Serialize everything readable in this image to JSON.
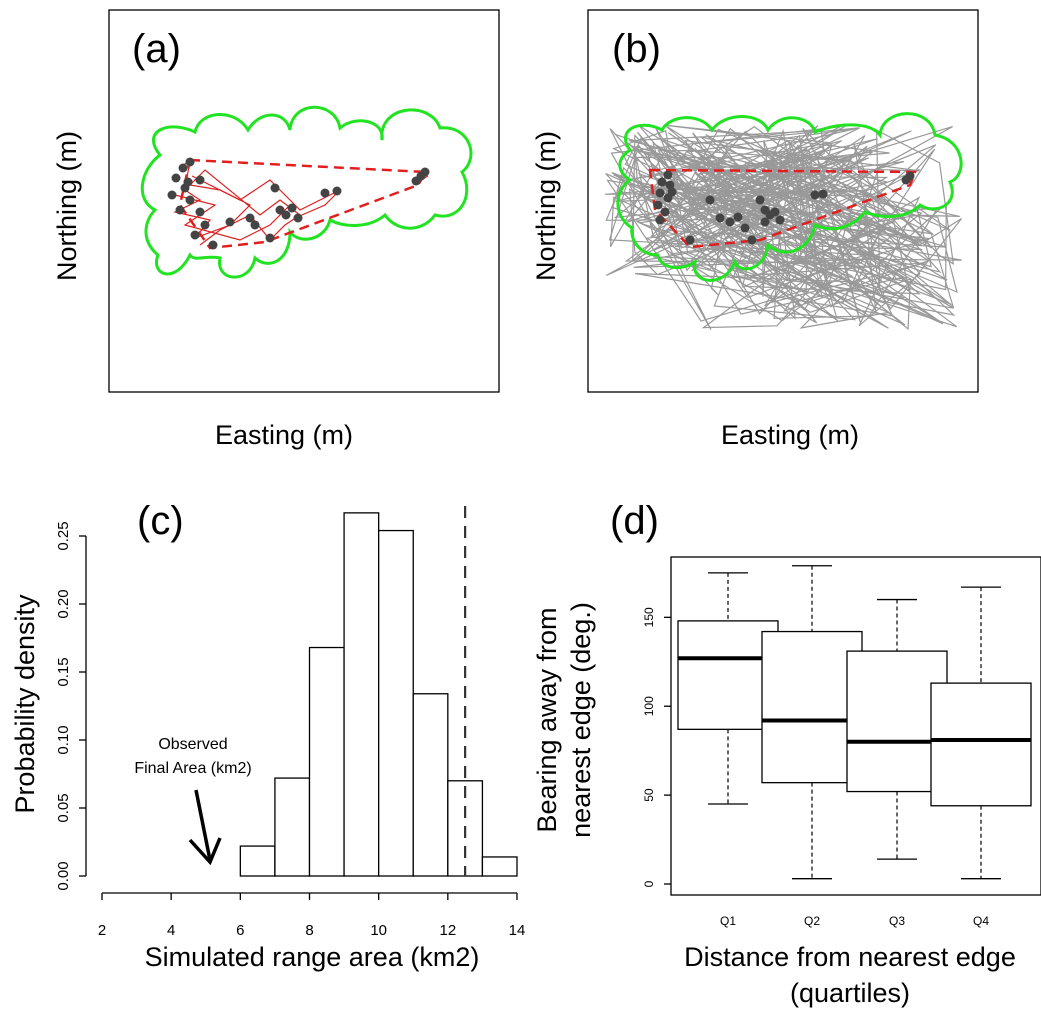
{
  "panels": {
    "a": {
      "tag": "(a)",
      "xlabel": "Easting (m)",
      "ylabel": "Northing (m)"
    },
    "b": {
      "tag": "(b)",
      "xlabel": "Easting (m)",
      "ylabel": "Northing (m)"
    },
    "c": {
      "tag": "(c)",
      "annotation_line1": "Observed",
      "annotation_line2": "Final Area (km2)"
    },
    "d": {
      "tag": "(d)"
    }
  },
  "colors": {
    "buffer": "#22e322",
    "hull": "#e02020",
    "paths": "#999999",
    "points": "#444444",
    "steps": "#e02020"
  },
  "chart_data": [
    {
      "panel": "a",
      "type": "scatter",
      "description_elements": [
        "observed relocation points",
        "red movement paths",
        "red dashed minimum convex polygon",
        "green buffer outline"
      ],
      "ticks_shown": false
    },
    {
      "panel": "b",
      "type": "line",
      "description_elements": [
        "grey simulated range polygons",
        "observed points",
        "red dashed polygon",
        "green buffer outline"
      ],
      "ticks_shown": false
    },
    {
      "panel": "c",
      "type": "bar",
      "xlabel": "Simulated range area (km2)",
      "ylabel": "Probability density",
      "xlim": [
        2,
        14
      ],
      "ylim": [
        0,
        0.25
      ],
      "xticks": [
        "2",
        "4",
        "6",
        "8",
        "10",
        "12",
        "14"
      ],
      "yticks": [
        "0.00",
        "0.05",
        "0.10",
        "0.15",
        "0.20",
        "0.25"
      ],
      "bins": [
        {
          "x0": 6,
          "x1": 7,
          "value": 0.022
        },
        {
          "x0": 7,
          "x1": 8,
          "value": 0.072
        },
        {
          "x0": 8,
          "x1": 9,
          "value": 0.168
        },
        {
          "x0": 9,
          "x1": 10,
          "value": 0.267
        },
        {
          "x0": 10,
          "x1": 11,
          "value": 0.254
        },
        {
          "x0": 11,
          "x1": 12,
          "value": 0.134
        },
        {
          "x0": 12,
          "x1": 13,
          "value": 0.07
        },
        {
          "x0": 13,
          "x1": 14,
          "value": 0.014
        }
      ],
      "vline": 12.5,
      "arrow_target_x": 5.1
    },
    {
      "panel": "d",
      "type": "box",
      "xlabel_line1": "Distance from nearest edge",
      "xlabel_line2": "(quartiles)",
      "ylabel_line1": "Bearing away from",
      "ylabel_line2": "nearest edge (deg.)",
      "ylim": [
        0,
        180
      ],
      "yticks": [
        "0",
        "50",
        "100",
        "150"
      ],
      "categories": [
        "Q1",
        "Q2",
        "Q3",
        "Q4"
      ],
      "boxes": [
        {
          "min": 45,
          "q1": 87,
          "median": 127,
          "q3": 148,
          "max": 175
        },
        {
          "min": 3,
          "q1": 57,
          "median": 92,
          "q3": 142,
          "max": 179
        },
        {
          "min": 14,
          "q1": 52,
          "median": 80,
          "q3": 131,
          "max": 160
        },
        {
          "min": 3,
          "q1": 44,
          "median": 81,
          "q3": 113,
          "max": 167
        }
      ]
    }
  ]
}
